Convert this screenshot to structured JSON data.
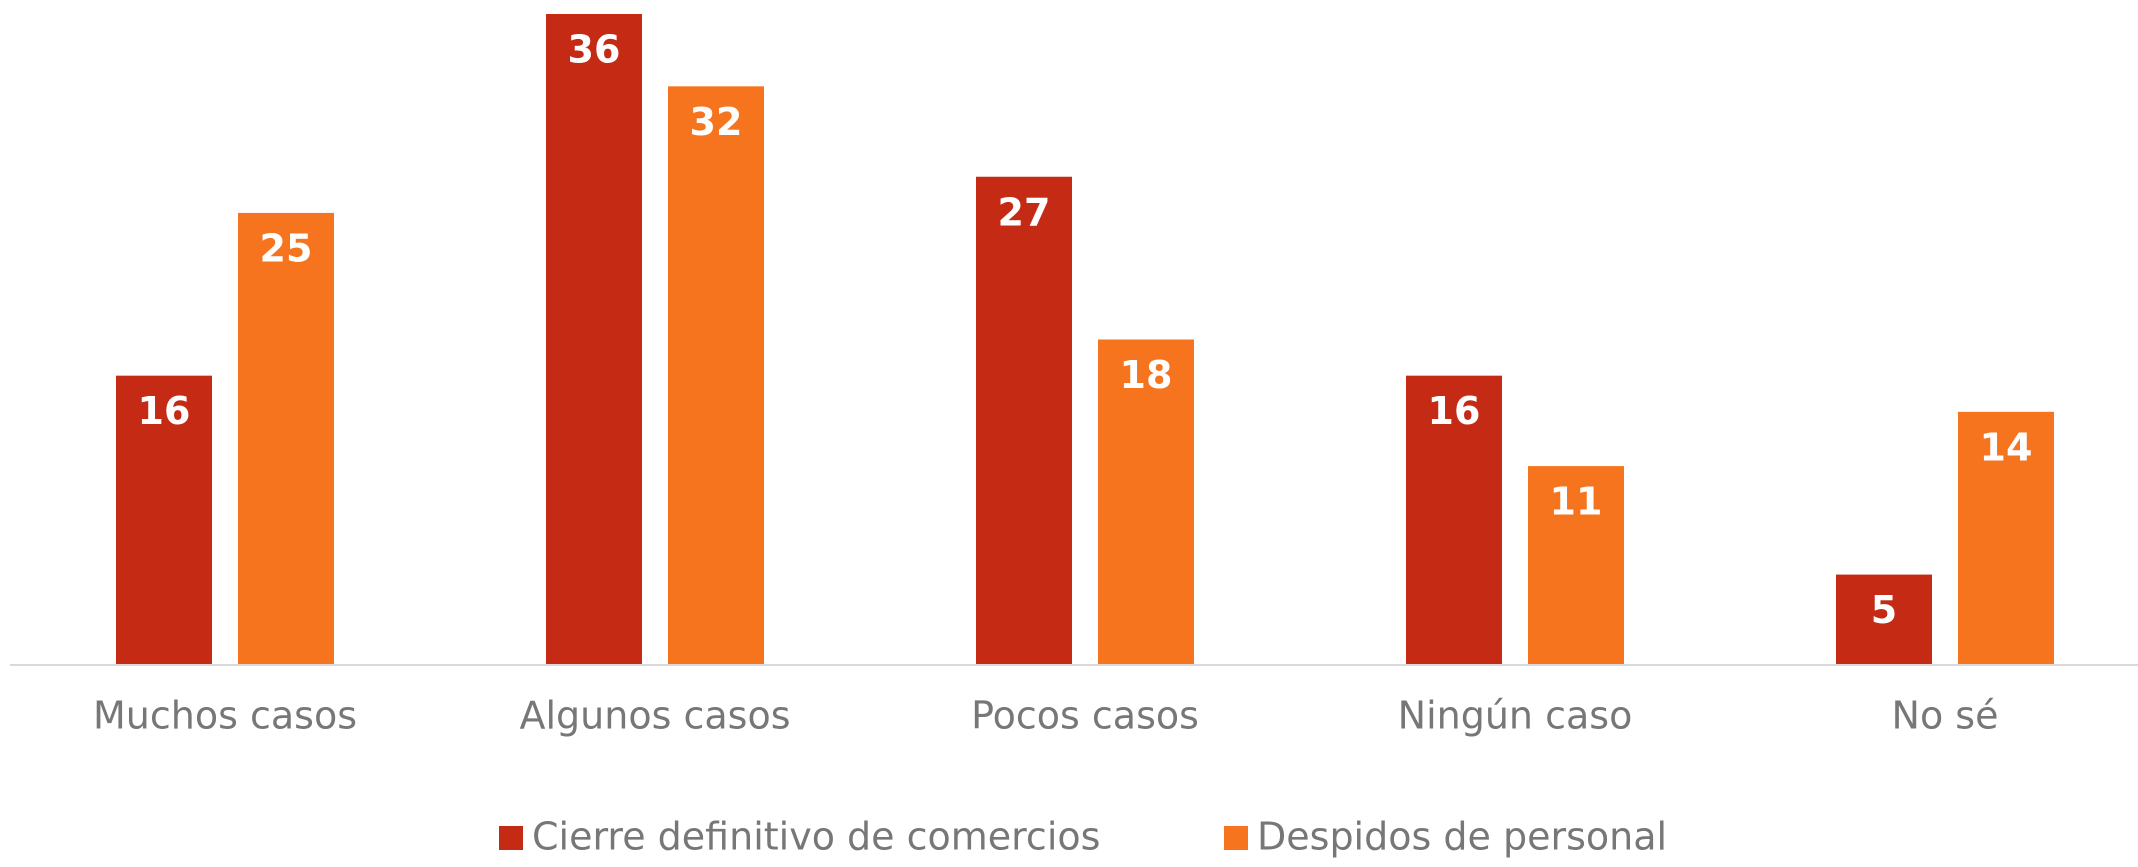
{
  "chart_data": {
    "type": "bar",
    "categories": [
      "Muchos casos",
      "Algunos casos",
      "Pocos casos",
      "Ningún caso",
      "No sé"
    ],
    "series": [
      {
        "name": "Cierre definitivo de comercios",
        "color": "#c42a14",
        "values": [
          16,
          36,
          27,
          16,
          5
        ]
      },
      {
        "name": "Despidos de personal",
        "color": "#f7741e",
        "values": [
          25,
          32,
          18,
          11,
          14
        ]
      }
    ],
    "grid": false,
    "legend": "bottom"
  }
}
